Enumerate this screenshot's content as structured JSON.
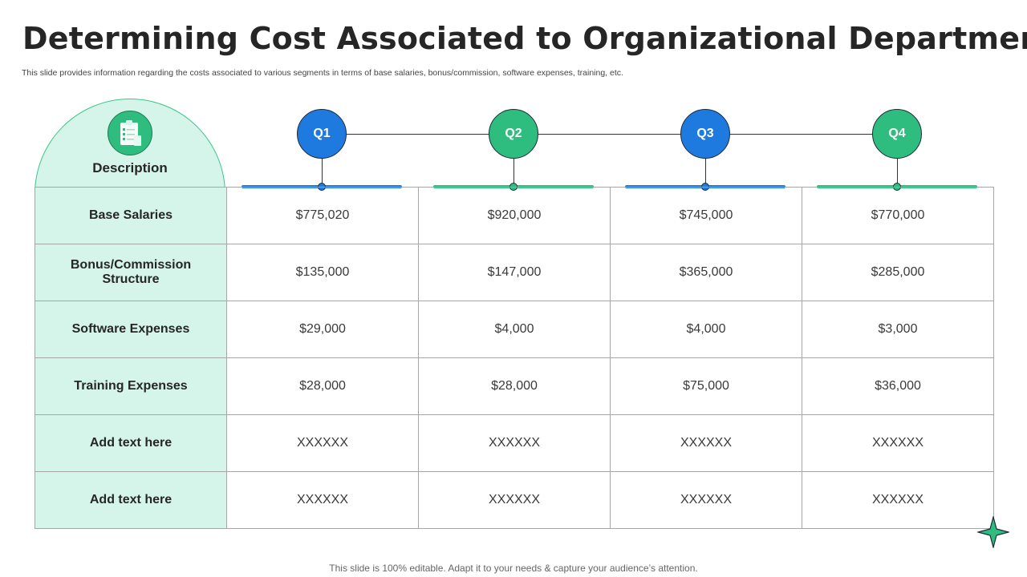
{
  "title": "Determining Cost Associated to Organizational Department",
  "subtitle": "This slide provides information regarding the costs associated to various segments in terms of base salaries, bonus/commission, software expenses, training, etc.",
  "header": {
    "description_label": "Description",
    "description_icon": "clipboard-checklist-icon"
  },
  "quarters": [
    {
      "label": "Q1",
      "color": "#1f7ae0"
    },
    {
      "label": "Q2",
      "color": "#2ebd7e"
    },
    {
      "label": "Q3",
      "color": "#1f7ae0"
    },
    {
      "label": "Q4",
      "color": "#2ebd7e"
    }
  ],
  "rows": [
    {
      "label": "Base Salaries",
      "values": [
        "$775,020",
        "$920,000",
        "$745,000",
        "$770,000"
      ]
    },
    {
      "label": "Bonus/Commission Structure",
      "values": [
        "$135,000",
        "$147,000",
        "$365,000",
        "$285,000"
      ]
    },
    {
      "label": "Software Expenses",
      "values": [
        "$29,000",
        "$4,000",
        "$4,000",
        "$3,000"
      ]
    },
    {
      "label": "Training Expenses",
      "values": [
        "$28,000",
        "$28,000",
        "$75,000",
        "$36,000"
      ]
    },
    {
      "label": "Add text here",
      "values": [
        "XXXXXX",
        "XXXXXX",
        "XXXXXX",
        "XXXXXX"
      ]
    },
    {
      "label": "Add text here",
      "values": [
        "XXXXXX",
        "XXXXXX",
        "XXXXXX",
        "XXXXXX"
      ]
    }
  ],
  "footer": "This slide is 100% editable. Adapt it to your needs & capture your audience’s attention.",
  "colors": {
    "accent_blue": "#1f7ae0",
    "accent_green": "#2ebd7e",
    "label_bg": "#d6f5ea"
  }
}
